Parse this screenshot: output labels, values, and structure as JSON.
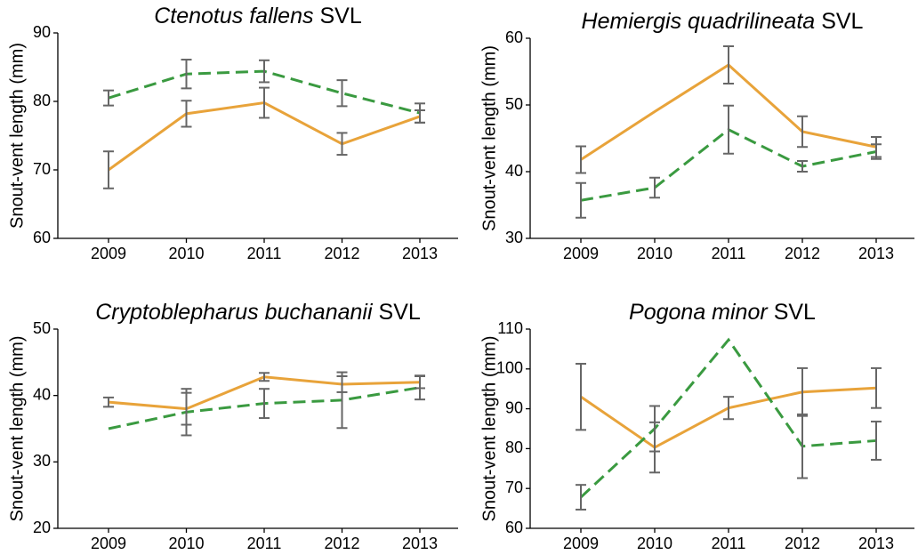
{
  "chart_data": [
    {
      "type": "line",
      "title_italic": "Ctenotus fallens",
      "title_suffix": "SVL",
      "ylabel": "Snout-vent length (mm)",
      "categories": [
        "2009",
        "2010",
        "2011",
        "2012",
        "2013"
      ],
      "ylim": [
        60,
        90
      ],
      "yticks": [
        60,
        70,
        80,
        90
      ],
      "series": [
        {
          "color": "#e8a33a",
          "dashed": false,
          "values": [
            70,
            78.2,
            79.8,
            73.8,
            77.8
          ],
          "errors": [
            2.7,
            1.9,
            2.2,
            1.6,
            0.9
          ]
        },
        {
          "color": "#3a9a40",
          "dashed": true,
          "values": [
            80.5,
            84,
            84.4,
            81.2,
            78.3
          ],
          "errors": [
            1.1,
            2.1,
            1.6,
            1.9,
            1.4
          ]
        }
      ]
    },
    {
      "type": "line",
      "title_italic": "Hemiergis quadrilineata",
      "title_suffix": "SVL",
      "ylabel": "Snout-vent length (mm)",
      "categories": [
        "2009",
        "2010",
        "2011",
        "2012",
        "2013"
      ],
      "ylim": [
        30,
        60
      ],
      "yticks": [
        30,
        40,
        50,
        60
      ],
      "series": [
        {
          "color": "#e8a33a",
          "dashed": false,
          "values": [
            41.8,
            49,
            56,
            46,
            43.7
          ],
          "errors": [
            2,
            null,
            2.8,
            2.3,
            1.5
          ]
        },
        {
          "color": "#3a9a40",
          "dashed": true,
          "values": [
            35.7,
            37.6,
            46.3,
            40.8,
            43
          ],
          "errors": [
            2.6,
            1.5,
            3.6,
            0.8,
            1.1
          ]
        }
      ]
    },
    {
      "type": "line",
      "title_italic": "Cryptoblepharus buchananii",
      "title_suffix": "SVL",
      "ylabel": "Snout-vent length (mm)",
      "categories": [
        "2009",
        "2010",
        "2011",
        "2012",
        "2013"
      ],
      "ylim": [
        20,
        50
      ],
      "yticks": [
        20,
        30,
        40,
        50
      ],
      "series": [
        {
          "color": "#e8a33a",
          "dashed": false,
          "values": [
            39,
            38,
            42.8,
            41.7,
            42
          ],
          "errors": [
            0.7,
            2.4,
            0.6,
            1.2,
            0.9
          ]
        },
        {
          "color": "#3a9a40",
          "dashed": true,
          "values": [
            35,
            37.5,
            38.8,
            39.3,
            41.2
          ],
          "errors": [
            null,
            3.5,
            2.2,
            4.2,
            1.8
          ]
        }
      ]
    },
    {
      "type": "line",
      "title_italic": "Pogona minor",
      "title_suffix": "SVL",
      "ylabel": "Snout-vent length (mm)",
      "categories": [
        "2009",
        "2010",
        "2011",
        "2012",
        "2013"
      ],
      "ylim": [
        60,
        110
      ],
      "yticks": [
        60,
        70,
        80,
        90,
        100,
        110
      ],
      "series": [
        {
          "color": "#e8a33a",
          "dashed": false,
          "values": [
            93,
            80.3,
            90.2,
            94.2,
            95.2
          ],
          "errors": [
            8.3,
            6.3,
            2.8,
            6,
            5
          ]
        },
        {
          "color": "#3a9a40",
          "dashed": true,
          "values": [
            67.8,
            85,
            107.3,
            80.6,
            82
          ],
          "errors": [
            3.1,
            5.7,
            null,
            8,
            4.8
          ]
        }
      ]
    }
  ]
}
